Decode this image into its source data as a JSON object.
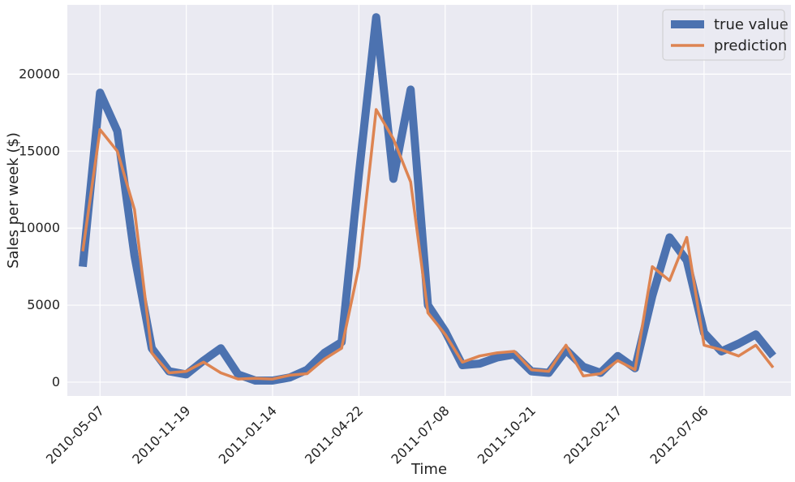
{
  "chart_data": {
    "type": "line",
    "title": "",
    "xlabel": "Time",
    "ylabel": "Sales per week ($)",
    "x_tick_labels": [
      "2010-05-07",
      "2010-11-19",
      "2011-01-14",
      "2011-04-22",
      "2011-07-08",
      "2011-10-21",
      "2012-02-17",
      "2012-07-06"
    ],
    "y_ticks": [
      0,
      5000,
      10000,
      15000,
      20000
    ],
    "ylim": [
      -900,
      24500
    ],
    "grid": true,
    "legend_position": "top-right",
    "series": [
      {
        "name": "true value",
        "color": "#4c72b0",
        "values": [
          7500,
          18800,
          16300,
          8200,
          2200,
          700,
          500,
          1400,
          2200,
          500,
          100,
          100,
          300,
          800,
          1900,
          2600,
          13500,
          23700,
          13200,
          19000,
          5000,
          3300,
          1100,
          1200,
          1600,
          1800,
          700,
          600,
          2100,
          1000,
          600,
          1700,
          900,
          5600,
          9400,
          7900,
          3200,
          2000,
          2500,
          3100,
          1700
        ]
      },
      {
        "name": "prediction",
        "color": "#dd8452",
        "values": [
          8500,
          16400,
          15000,
          11200,
          1900,
          600,
          700,
          1300,
          600,
          200,
          250,
          200,
          450,
          550,
          1500,
          2200,
          7500,
          17700,
          15800,
          13000,
          4500,
          3100,
          1300,
          1700,
          1900,
          2000,
          800,
          700,
          2400,
          400,
          550,
          1400,
          800,
          7500,
          6600,
          9400,
          2400,
          2100,
          1700,
          2400,
          950
        ]
      }
    ]
  }
}
